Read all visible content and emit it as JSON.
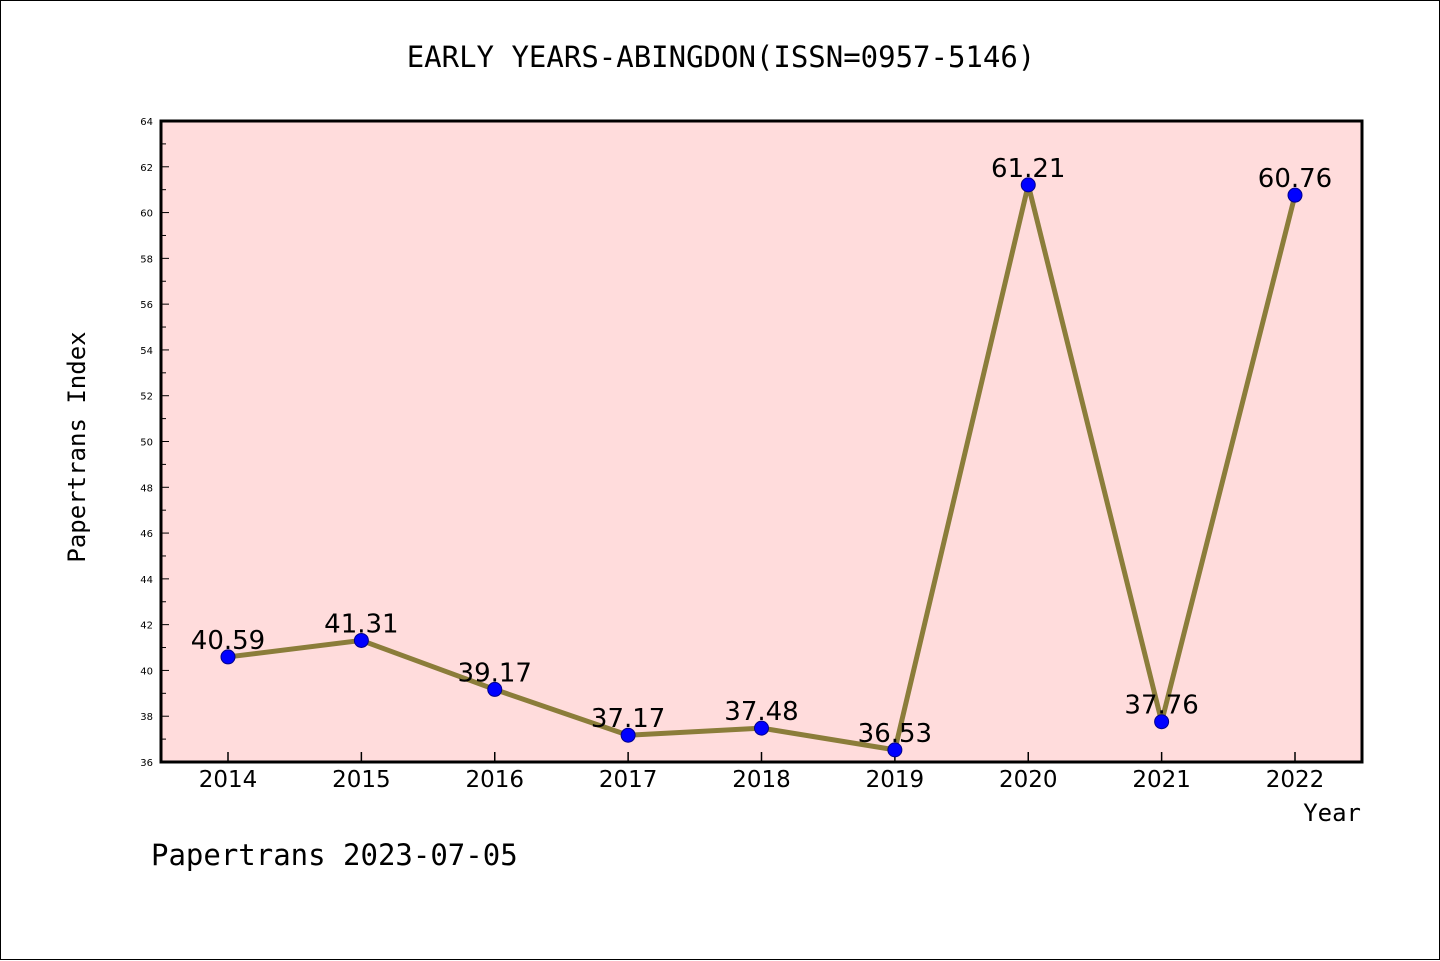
{
  "footer": "Papertrans 2023-07-05",
  "chart_data": {
    "type": "line",
    "title": "EARLY YEARS-ABINGDON(ISSN=0957-5146)",
    "xlabel": "Year",
    "ylabel": "Papertrans Index",
    "categories": [
      "2014",
      "2015",
      "2016",
      "2017",
      "2018",
      "2019",
      "2020",
      "2021",
      "2022"
    ],
    "series": [
      {
        "values": [
          40.59,
          41.31,
          39.17,
          37.17,
          37.48,
          36.53,
          61.21,
          37.76,
          60.76
        ],
        "labels": [
          "40.59",
          "41.31",
          "39.17",
          "37.17",
          "37.48",
          "36.53",
          "61.21",
          "37.76",
          "60.76"
        ]
      }
    ],
    "ylim": [
      36,
      64
    ],
    "yticks": [
      "36",
      "38",
      "40",
      "42",
      "44",
      "46",
      "48",
      "50",
      "52",
      "54",
      "56",
      "58",
      "60",
      "62",
      "64"
    ],
    "grid": false,
    "legend": "none",
    "colors": {
      "plot_background": "#ffdcdc",
      "line": "#8b7d3a",
      "marker": "#0000ff"
    }
  }
}
